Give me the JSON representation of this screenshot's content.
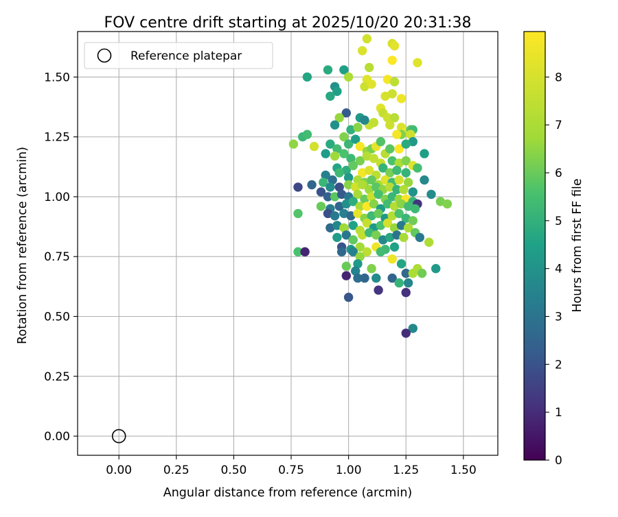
{
  "chart_data": {
    "type": "scatter",
    "title": "FOV centre drift starting at 2025/10/20 20:31:38",
    "xlabel": "Angular distance from reference (arcmin)",
    "ylabel": "Rotation from reference (arcmin)",
    "xlim": [
      -0.18,
      1.65
    ],
    "ylim": [
      -0.08,
      1.69
    ],
    "xticks": [
      0.0,
      0.25,
      0.5,
      0.75,
      1.0,
      1.25,
      1.5
    ],
    "xtick_labels": [
      "0.00",
      "0.25",
      "0.50",
      "0.75",
      "1.00",
      "1.25",
      "1.50"
    ],
    "yticks": [
      0.0,
      0.25,
      0.5,
      0.75,
      1.0,
      1.25,
      1.5
    ],
    "ytick_labels": [
      "0.00",
      "0.25",
      "0.50",
      "0.75",
      "1.00",
      "1.25",
      "1.50"
    ],
    "grid": true,
    "legend": {
      "position": "top-left",
      "entries": [
        "Reference platepar"
      ]
    },
    "reference_point": {
      "label": "Reference platepar",
      "x": 0.0,
      "y": 0.0
    },
    "colorbar": {
      "label": "Hours from first FF file",
      "colormap": "viridis",
      "range": [
        0,
        8.95
      ],
      "ticks": [
        0,
        1,
        2,
        3,
        4,
        5,
        6,
        7,
        8
      ],
      "tick_labels": [
        "0",
        "1",
        "2",
        "3",
        "4",
        "5",
        "6",
        "7",
        "8"
      ]
    },
    "series": [
      {
        "name": "FOV centre",
        "columns": [
          "x_arcmin",
          "y_arcmin",
          "hours"
        ],
        "points": [
          [
            1.08,
            1.66,
            7.9
          ],
          [
            1.19,
            1.64,
            8.0
          ],
          [
            1.2,
            1.63,
            8.3
          ],
          [
            1.06,
            1.61,
            8.1
          ],
          [
            1.09,
            1.54,
            7.3
          ],
          [
            1.19,
            1.57,
            8.9
          ],
          [
            1.3,
            1.56,
            8.2
          ],
          [
            0.82,
            1.5,
            4.6
          ],
          [
            0.91,
            1.53,
            4.8
          ],
          [
            0.98,
            1.53,
            4.4
          ],
          [
            1.0,
            1.5,
            7.0
          ],
          [
            1.08,
            1.49,
            8.2
          ],
          [
            1.07,
            1.46,
            7.8
          ],
          [
            1.1,
            1.47,
            8.2
          ],
          [
            1.17,
            1.49,
            8.7
          ],
          [
            1.2,
            1.48,
            7.4
          ],
          [
            0.94,
            1.46,
            3.9
          ],
          [
            0.95,
            1.44,
            4.4
          ],
          [
            0.92,
            1.42,
            4.7
          ],
          [
            1.16,
            1.42,
            8.0
          ],
          [
            1.19,
            1.43,
            7.8
          ],
          [
            1.23,
            1.41,
            8.6
          ],
          [
            1.14,
            1.37,
            8.3
          ],
          [
            1.15,
            1.35,
            7.6
          ],
          [
            1.17,
            1.33,
            7.8
          ],
          [
            1.2,
            1.33,
            7.3
          ],
          [
            1.18,
            1.3,
            7.8
          ],
          [
            1.09,
            1.3,
            7.7
          ],
          [
            1.11,
            1.31,
            7.5
          ],
          [
            1.05,
            1.33,
            4.2
          ],
          [
            1.07,
            1.32,
            3.6
          ],
          [
            0.99,
            1.35,
            2.2
          ],
          [
            0.96,
            1.33,
            6.6
          ],
          [
            0.94,
            1.3,
            3.9
          ],
          [
            1.01,
            1.28,
            5.0
          ],
          [
            1.04,
            1.29,
            6.4
          ],
          [
            1.23,
            1.29,
            8.1
          ],
          [
            1.25,
            1.27,
            8.6
          ],
          [
            1.27,
            1.28,
            5.9
          ],
          [
            1.28,
            1.28,
            5.4
          ],
          [
            1.27,
            1.26,
            7.8
          ],
          [
            1.23,
            1.26,
            6.3
          ],
          [
            1.21,
            1.26,
            8.7
          ],
          [
            1.28,
            1.23,
            4.2
          ],
          [
            0.8,
            1.25,
            5.2
          ],
          [
            0.82,
            1.26,
            5.4
          ],
          [
            0.76,
            1.22,
            6.5
          ],
          [
            0.85,
            1.21,
            7.9
          ],
          [
            0.92,
            1.22,
            4.8
          ],
          [
            0.95,
            1.2,
            5.4
          ],
          [
            0.98,
            1.25,
            6.3
          ],
          [
            1.0,
            1.22,
            5.2
          ],
          [
            1.03,
            1.24,
            4.4
          ],
          [
            1.05,
            1.21,
            8.8
          ],
          [
            1.08,
            1.19,
            6.6
          ],
          [
            1.1,
            1.2,
            6.2
          ],
          [
            1.12,
            1.21,
            8.4
          ],
          [
            1.14,
            1.23,
            5.7
          ],
          [
            1.16,
            1.18,
            7.3
          ],
          [
            1.18,
            1.2,
            5.8
          ],
          [
            1.22,
            1.2,
            8.9
          ],
          [
            1.25,
            1.22,
            4.8
          ],
          [
            1.33,
            1.18,
            4.4
          ],
          [
            0.9,
            1.18,
            4.3
          ],
          [
            0.94,
            1.17,
            6.7
          ],
          [
            0.98,
            1.18,
            5.6
          ],
          [
            1.01,
            1.16,
            5.3
          ],
          [
            1.05,
            1.15,
            6.2
          ],
          [
            1.08,
            1.17,
            7.2
          ],
          [
            1.11,
            1.16,
            7.5
          ],
          [
            1.14,
            1.14,
            7.6
          ],
          [
            1.19,
            1.15,
            5.6
          ],
          [
            1.22,
            1.14,
            7.0
          ],
          [
            1.25,
            1.15,
            6.3
          ],
          [
            0.95,
            1.12,
            4.6
          ],
          [
            0.99,
            1.11,
            4.9
          ],
          [
            1.02,
            1.13,
            5.9
          ],
          [
            1.06,
            1.1,
            8.7
          ],
          [
            1.09,
            1.11,
            8.1
          ],
          [
            1.12,
            1.09,
            7.4
          ],
          [
            1.15,
            1.12,
            5.1
          ],
          [
            1.18,
            1.1,
            6.2
          ],
          [
            1.21,
            1.11,
            5.3
          ],
          [
            1.25,
            1.1,
            5.1
          ],
          [
            1.28,
            1.13,
            8.2
          ],
          [
            1.3,
            1.12,
            5.5
          ],
          [
            0.9,
            1.09,
            3.4
          ],
          [
            0.93,
            1.07,
            2.9
          ],
          [
            0.96,
            1.1,
            5.3
          ],
          [
            1.0,
            1.08,
            4.2
          ],
          [
            1.04,
            1.07,
            7.0
          ],
          [
            1.07,
            1.06,
            6.3
          ],
          [
            1.1,
            1.07,
            5.9
          ],
          [
            1.13,
            1.05,
            6.8
          ],
          [
            1.16,
            1.07,
            8.2
          ],
          [
            1.19,
            1.06,
            5.4
          ],
          [
            1.22,
            1.07,
            7.9
          ],
          [
            1.26,
            1.06,
            6.6
          ],
          [
            1.33,
            1.07,
            3.7
          ],
          [
            0.78,
            1.04,
            1.7
          ],
          [
            0.84,
            1.05,
            2.6
          ],
          [
            0.89,
            1.06,
            5.2
          ],
          [
            0.92,
            1.04,
            3.8
          ],
          [
            0.96,
            1.04,
            1.9
          ],
          [
            1.0,
            1.05,
            6.4
          ],
          [
            1.03,
            1.04,
            7.9
          ],
          [
            1.06,
            1.05,
            7.1
          ],
          [
            1.09,
            1.03,
            6.7
          ],
          [
            1.12,
            1.04,
            5.8
          ],
          [
            1.15,
            1.03,
            6.5
          ],
          [
            1.18,
            1.04,
            7.3
          ],
          [
            1.21,
            1.03,
            5.1
          ],
          [
            1.24,
            1.03,
            7.1
          ],
          [
            1.28,
            1.02,
            4.0
          ],
          [
            1.36,
            1.01,
            3.8
          ],
          [
            0.88,
            1.02,
            2.0
          ],
          [
            0.91,
            1.0,
            2.4
          ],
          [
            0.94,
            1.0,
            5.8
          ],
          [
            0.97,
            1.01,
            2.2
          ],
          [
            1.0,
            1.0,
            3.1
          ],
          [
            1.04,
            1.01,
            6.9
          ],
          [
            1.07,
            0.99,
            6.0
          ],
          [
            1.1,
            1.0,
            7.7
          ],
          [
            1.13,
            1.01,
            5.5
          ],
          [
            1.16,
            0.99,
            6.3
          ],
          [
            1.19,
            1.0,
            5.2
          ],
          [
            1.22,
            0.99,
            6.6
          ],
          [
            1.25,
            0.99,
            8.8
          ],
          [
            1.28,
            0.98,
            5.1
          ],
          [
            1.4,
            0.98,
            6.2
          ],
          [
            1.43,
            0.97,
            6.3
          ],
          [
            0.88,
            0.96,
            6.0
          ],
          [
            0.92,
            0.95,
            3.3
          ],
          [
            0.96,
            0.96,
            2.6
          ],
          [
            0.99,
            0.97,
            3.9
          ],
          [
            1.02,
            0.98,
            4.9
          ],
          [
            1.05,
            0.96,
            6.9
          ],
          [
            1.08,
            0.96,
            8.9
          ],
          [
            1.11,
            0.97,
            6.4
          ],
          [
            1.14,
            0.95,
            4.3
          ],
          [
            1.17,
            0.97,
            5.4
          ],
          [
            1.2,
            0.96,
            7.2
          ],
          [
            1.23,
            0.97,
            6.4
          ],
          [
            1.26,
            0.96,
            5.4
          ],
          [
            1.3,
            0.97,
            1.2
          ],
          [
            1.29,
            0.95,
            5.3
          ],
          [
            0.78,
            0.93,
            5.7
          ],
          [
            0.91,
            0.93,
            1.9
          ],
          [
            0.94,
            0.92,
            3.2
          ],
          [
            0.98,
            0.93,
            3.4
          ],
          [
            1.01,
            0.92,
            2.7
          ],
          [
            1.04,
            0.93,
            8.4
          ],
          [
            1.07,
            0.91,
            6.4
          ],
          [
            1.1,
            0.92,
            5.3
          ],
          [
            1.13,
            0.93,
            6.0
          ],
          [
            1.16,
            0.91,
            4.1
          ],
          [
            1.19,
            0.92,
            7.2
          ],
          [
            1.22,
            0.93,
            5.6
          ],
          [
            1.25,
            0.91,
            5.2
          ],
          [
            1.28,
            0.9,
            6.1
          ],
          [
            0.92,
            0.87,
            2.7
          ],
          [
            0.95,
            0.88,
            3.6
          ],
          [
            0.98,
            0.87,
            6.7
          ],
          [
            1.02,
            0.88,
            4.5
          ],
          [
            1.05,
            0.86,
            7.3
          ],
          [
            1.08,
            0.89,
            7.6
          ],
          [
            1.11,
            0.87,
            4.2
          ],
          [
            1.14,
            0.88,
            5.6
          ],
          [
            1.17,
            0.89,
            7.9
          ],
          [
            1.2,
            0.87,
            6.6
          ],
          [
            1.23,
            0.88,
            3.2
          ],
          [
            1.26,
            0.87,
            7.0
          ],
          [
            1.29,
            0.85,
            5.9
          ],
          [
            0.95,
            0.83,
            4.3
          ],
          [
            0.99,
            0.84,
            3.1
          ],
          [
            1.02,
            0.82,
            5.9
          ],
          [
            1.06,
            0.84,
            7.5
          ],
          [
            1.09,
            0.85,
            5.3
          ],
          [
            1.12,
            0.84,
            6.2
          ],
          [
            1.15,
            0.82,
            3.7
          ],
          [
            1.18,
            0.83,
            4.7
          ],
          [
            1.21,
            0.84,
            3.0
          ],
          [
            1.24,
            0.83,
            6.9
          ],
          [
            1.31,
            0.83,
            3.2
          ],
          [
            1.35,
            0.81,
            7.1
          ],
          [
            0.97,
            0.79,
            2.0
          ],
          [
            1.01,
            0.78,
            4.1
          ],
          [
            1.05,
            0.79,
            6.8
          ],
          [
            1.08,
            0.77,
            7.4
          ],
          [
            1.12,
            0.79,
            8.6
          ],
          [
            1.16,
            0.78,
            5.3
          ],
          [
            1.2,
            0.79,
            4.5
          ],
          [
            0.78,
            0.77,
            5.6
          ],
          [
            0.81,
            0.77,
            0.8
          ],
          [
            0.97,
            0.77,
            2.6
          ],
          [
            1.02,
            0.77,
            3.4
          ],
          [
            1.05,
            0.75,
            6.6
          ],
          [
            1.14,
            0.77,
            5.4
          ],
          [
            1.19,
            0.74,
            8.6
          ],
          [
            0.99,
            0.71,
            6.0
          ],
          [
            1.04,
            0.72,
            4.2
          ],
          [
            1.03,
            0.69,
            3.5
          ],
          [
            1.1,
            0.7,
            6.3
          ],
          [
            1.23,
            0.72,
            4.6
          ],
          [
            1.3,
            0.7,
            7.0
          ],
          [
            1.32,
            0.68,
            6.1
          ],
          [
            1.38,
            0.7,
            4.2
          ],
          [
            0.99,
            0.67,
            0.8
          ],
          [
            1.04,
            0.66,
            2.8
          ],
          [
            1.07,
            0.66,
            2.6
          ],
          [
            1.12,
            0.66,
            3.8
          ],
          [
            1.19,
            0.66,
            2.5
          ],
          [
            1.22,
            0.64,
            5.1
          ],
          [
            1.25,
            0.68,
            2.7
          ],
          [
            1.26,
            0.64,
            3.6
          ],
          [
            1.28,
            0.68,
            7.0
          ],
          [
            1.13,
            0.61,
            1.2
          ],
          [
            1.25,
            0.6,
            1.1
          ],
          [
            1.0,
            0.58,
            2.1
          ],
          [
            1.28,
            0.45,
            3.7
          ],
          [
            1.25,
            0.43,
            1.0
          ]
        ]
      }
    ]
  }
}
